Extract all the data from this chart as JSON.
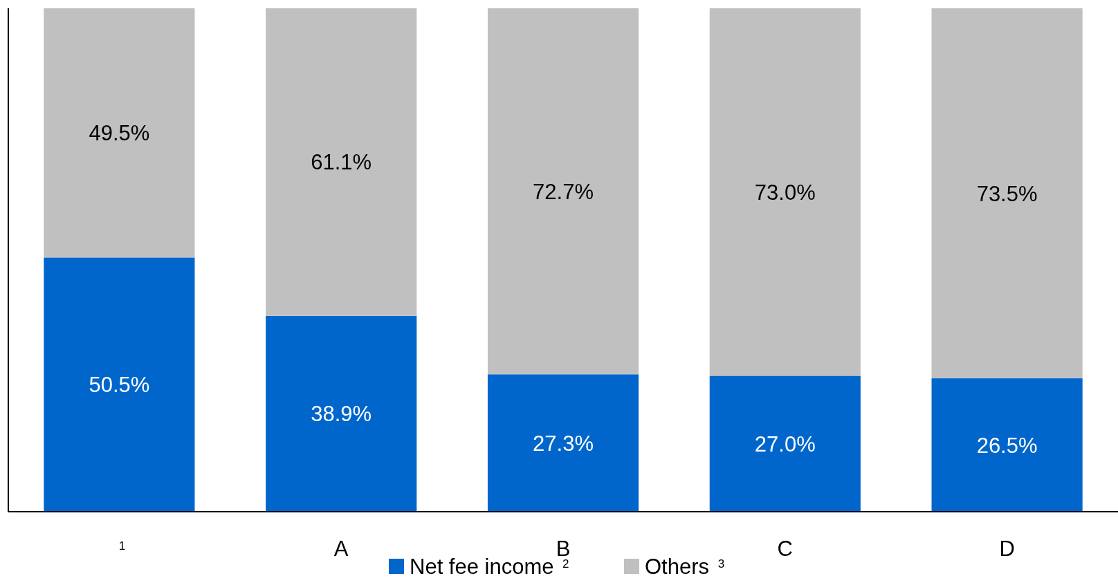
{
  "chart_data": {
    "type": "bar",
    "stacked": true,
    "categories": [
      "$^{1}$",
      "A",
      "B",
      "C",
      "D"
    ],
    "series": [
      {
        "name": "Net fee income $^{2}$",
        "color": "#0066cc",
        "values": [
          50.5,
          38.9,
          27.3,
          27.0,
          26.5
        ],
        "value_labels": [
          "50.5%",
          "38.9%",
          "27.3%",
          "27.0%",
          "26.5%"
        ]
      },
      {
        "name": "Others $^{3}$",
        "color": "#c0c0c0",
        "values": [
          49.5,
          61.1,
          72.7,
          73.0,
          73.5
        ],
        "value_labels": [
          "49.5%",
          "61.1%",
          "72.7%",
          "73.0%",
          "73.5%"
        ]
      }
    ],
    "legend": "bottom"
  }
}
